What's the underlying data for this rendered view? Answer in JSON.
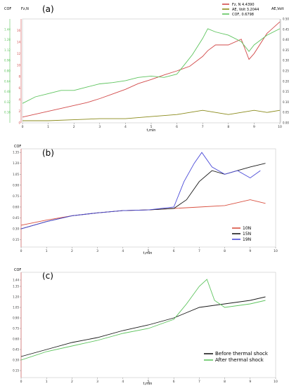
{
  "chart_data": [
    {
      "panel": "(a)",
      "type": "line",
      "xlabel": "t,min",
      "xlim": [
        0,
        10
      ],
      "xticks": [
        "0",
        "1",
        "2",
        "3",
        "4",
        "5",
        "6",
        "7",
        "8",
        "9",
        "10"
      ],
      "axes": {
        "cof": {
          "label": "COF",
          "color": "#5ec45e",
          "ylim": [
            0.0,
            1.6
          ],
          "ticks": [
            "0.16",
            "0.32",
            "0.48",
            "0.64",
            "0.80",
            "0.96",
            "1.12",
            "1.28",
            "1.44"
          ]
        },
        "fz": {
          "label": "Fz,N",
          "color": "#d24a4a",
          "ylim": [
            0,
            18
          ],
          "ticks": [
            "0",
            "2",
            "4",
            "6",
            "8",
            "10",
            "12",
            "14",
            "16"
          ]
        },
        "ae": {
          "label": "AE,Volt",
          "color": "#8a8a1a",
          "ylim": [
            0,
            0.5
          ],
          "ticks": [
            "0.00",
            "0.05",
            "0.10",
            "0.15",
            "0.20",
            "0.25",
            "0.30",
            "0.35",
            "0.40",
            "0.45",
            "0.50"
          ]
        }
      },
      "legend": [
        {
          "label": "Fz, N 4.4390",
          "color": "#d24a4a"
        },
        {
          "label": "AE, Volt 3.2044",
          "color": "#8a8a1a"
        },
        {
          "label": "COF, 0.6798",
          "color": "#5ec45e"
        }
      ],
      "series": [
        {
          "name": "Fz, N",
          "axis": "fz",
          "color": "#d24a4a",
          "x": [
            0,
            0.5,
            1,
            1.5,
            2,
            2.5,
            3,
            3.5,
            4,
            4.5,
            5,
            5.5,
            6,
            6.5,
            7,
            7.2,
            7.5,
            8,
            8.5,
            8.8,
            9,
            9.5,
            10
          ],
          "y": [
            1,
            1.5,
            2,
            2.5,
            3,
            3.5,
            4.2,
            5,
            5.8,
            6.8,
            7.5,
            8.3,
            9,
            9.8,
            11.5,
            12.5,
            13.5,
            13.5,
            14.5,
            11,
            12,
            15.5,
            17.5
          ]
        },
        {
          "name": "COF",
          "axis": "cof",
          "color": "#5ec45e",
          "x": [
            0,
            0.5,
            1,
            1.5,
            2,
            2.5,
            3,
            3.5,
            4,
            4.5,
            5,
            5.5,
            6,
            6.3,
            6.6,
            7,
            7.2,
            7.5,
            8,
            8.5,
            8.8,
            9,
            9.5,
            10
          ],
          "y": [
            0.3,
            0.4,
            0.45,
            0.5,
            0.5,
            0.55,
            0.6,
            0.62,
            0.65,
            0.7,
            0.72,
            0.7,
            0.75,
            0.9,
            1.05,
            1.3,
            1.45,
            1.4,
            1.35,
            1.25,
            1.1,
            1.2,
            1.35,
            1.45
          ]
        },
        {
          "name": "AE, Volt",
          "axis": "ae",
          "color": "#8a8a1a",
          "x": [
            0,
            1,
            2,
            3,
            4,
            5,
            6,
            6.5,
            7,
            7.5,
            8,
            8.5,
            9,
            9.5,
            10
          ],
          "y": [
            0.01,
            0.01,
            0.015,
            0.02,
            0.02,
            0.03,
            0.04,
            0.05,
            0.06,
            0.05,
            0.04,
            0.05,
            0.06,
            0.05,
            0.06
          ]
        }
      ]
    },
    {
      "panel": "(b)",
      "type": "line",
      "xlabel": "t,min",
      "ylabel": "COF",
      "xlim": [
        0,
        10
      ],
      "ylim": [
        0.05,
        1.4
      ],
      "xticks": [
        "0",
        "1",
        "2",
        "3",
        "4",
        "5",
        "6",
        "7",
        "8",
        "9",
        "10"
      ],
      "yticks": [
        "0.15",
        "0.30",
        "0.45",
        "0.60",
        "0.75",
        "0.90",
        "1.05",
        "1.20",
        "1.35"
      ],
      "legend": [
        {
          "label": "10N",
          "color": "#d95040"
        },
        {
          "label": "15N",
          "color": "#1a1a1a"
        },
        {
          "label": "19N",
          "color": "#4b4bd8"
        }
      ],
      "series": [
        {
          "name": "10N",
          "color": "#d95040",
          "x": [
            0,
            1,
            2,
            3,
            4,
            5,
            6,
            7,
            8,
            9,
            9.6
          ],
          "y": [
            0.35,
            0.42,
            0.48,
            0.52,
            0.55,
            0.56,
            0.58,
            0.6,
            0.62,
            0.7,
            0.65
          ]
        },
        {
          "name": "15N",
          "color": "#1a1a1a",
          "x": [
            0,
            1,
            2,
            3,
            4,
            5,
            6,
            6.5,
            7,
            7.5,
            8,
            8.5,
            9,
            9.6
          ],
          "y": [
            0.3,
            0.4,
            0.48,
            0.52,
            0.55,
            0.56,
            0.58,
            0.7,
            0.95,
            1.1,
            1.05,
            1.1,
            1.15,
            1.2
          ]
        },
        {
          "name": "19N",
          "color": "#4b4bd8",
          "x": [
            0,
            1,
            2,
            3,
            4,
            5,
            6,
            6.4,
            6.8,
            7.1,
            7.5,
            8,
            8.5,
            9,
            9.4
          ],
          "y": [
            0.3,
            0.4,
            0.48,
            0.52,
            0.55,
            0.56,
            0.6,
            0.95,
            1.2,
            1.35,
            1.15,
            1.05,
            1.1,
            1.0,
            1.1
          ]
        }
      ]
    },
    {
      "panel": "(c)",
      "type": "line",
      "xlabel": "t,min",
      "ylabel": "COF",
      "xlim": [
        0,
        10
      ],
      "ylim": [
        0.05,
        1.55
      ],
      "xticks": [
        "0",
        "1",
        "2",
        "3",
        "4",
        "5",
        "6",
        "7",
        "8",
        "9",
        "10"
      ],
      "yticks": [
        "0.15",
        "0.30",
        "0.45",
        "0.60",
        "0.75",
        "0.90",
        "1.05",
        "1.20",
        "1.35",
        "1.44"
      ],
      "legend": [
        {
          "label": "Before thermal shock",
          "color": "#1a1a1a"
        },
        {
          "label": "After thermal shock",
          "color": "#5ec45e"
        }
      ],
      "series": [
        {
          "name": "Before thermal shock",
          "color": "#1a1a1a",
          "x": [
            0,
            1,
            2,
            3,
            4,
            5,
            6,
            7,
            8,
            9,
            9.6
          ],
          "y": [
            0.35,
            0.45,
            0.55,
            0.62,
            0.72,
            0.8,
            0.9,
            1.05,
            1.1,
            1.15,
            1.2
          ]
        },
        {
          "name": "After thermal shock",
          "color": "#5ec45e",
          "x": [
            0,
            1,
            2,
            3,
            4,
            5,
            6,
            6.5,
            7,
            7.3,
            7.6,
            8,
            9,
            9.6
          ],
          "y": [
            0.3,
            0.42,
            0.5,
            0.58,
            0.68,
            0.75,
            0.88,
            1.1,
            1.35,
            1.45,
            1.15,
            1.05,
            1.1,
            1.15
          ]
        }
      ]
    }
  ]
}
